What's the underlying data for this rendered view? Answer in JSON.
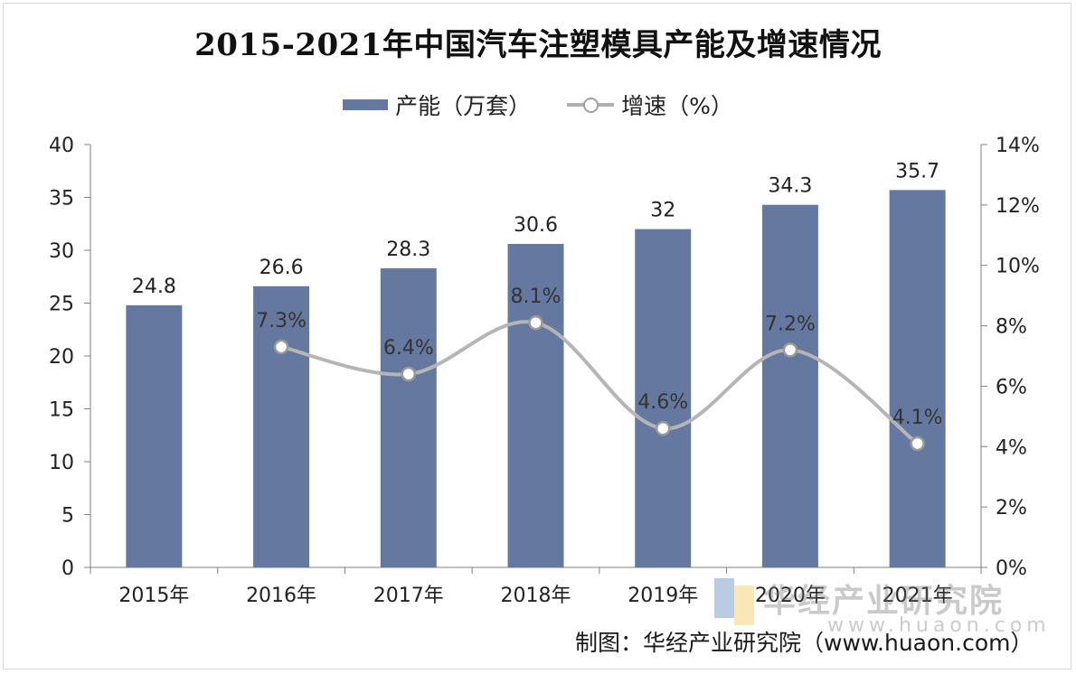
{
  "title": "2015-2021年中国汽车注塑模具产能及增速情况",
  "legend": {
    "bar_label": "产能（万套）",
    "line_label": "增速（%）"
  },
  "watermark": {
    "text": "华经产业研究院",
    "url": "www.huaon.com"
  },
  "source": "制图：华经产业研究院（www.huaon.com）",
  "colors": {
    "bar": "#65789f",
    "line": "#b5b5b5",
    "marker_stroke": "#9a9a9a"
  },
  "chart_data": {
    "type": "bar",
    "categories": [
      "2015年",
      "2016年",
      "2017年",
      "2018年",
      "2019年",
      "2020年",
      "2021年"
    ],
    "series": [
      {
        "name": "产能（万套）",
        "type": "bar",
        "axis": "left",
        "values": [
          24.8,
          26.6,
          28.3,
          30.6,
          32,
          34.3,
          35.7
        ],
        "labels": [
          "24.8",
          "26.6",
          "28.3",
          "30.6",
          "32",
          "34.3",
          "35.7"
        ]
      },
      {
        "name": "增速（%）",
        "type": "line",
        "axis": "right",
        "smooth": true,
        "values": [
          null,
          7.3,
          6.4,
          8.1,
          4.6,
          7.2,
          4.1
        ],
        "labels": [
          null,
          "7.3%",
          "6.4%",
          "8.1%",
          "4.6%",
          "7.2%",
          "4.1%"
        ]
      }
    ],
    "y_left": {
      "min": 0,
      "max": 40,
      "ticks": [
        "0",
        "5",
        "10",
        "15",
        "20",
        "25",
        "30",
        "35",
        "40"
      ]
    },
    "y_right": {
      "min": 0,
      "max": 14,
      "ticks": [
        "0%",
        "2%",
        "4%",
        "6%",
        "8%",
        "10%",
        "12%",
        "14%"
      ]
    },
    "grid": false,
    "legend_position": "top-center"
  }
}
